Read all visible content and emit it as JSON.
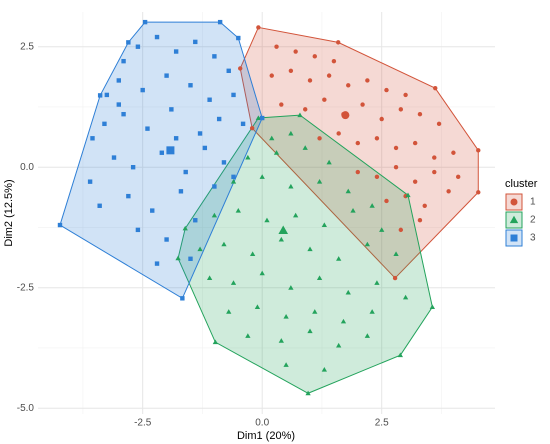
{
  "chart_data": {
    "type": "scatter",
    "xlabel": "Dim1 (20%)",
    "ylabel": "Dim2 (12.5%)",
    "legend_title": "cluster",
    "legend_position": "right",
    "grid": true,
    "xlim": [
      -4.69,
      4.87
    ],
    "ylim": [
      -5.12,
      3.22
    ],
    "xticks": [
      -2.5,
      {
        "value": 0,
        "label": "0.0"
      },
      2.5
    ],
    "yticks": [
      {
        "value": -5,
        "label": "-5.0"
      },
      -2.5,
      {
        "value": 0,
        "label": "0.0"
      },
      2.5
    ],
    "xminor": [
      -3.75,
      -1.25,
      1.25,
      3.75
    ],
    "yminor": [
      -3.75,
      -1.25,
      1.25
    ],
    "series": [
      {
        "name": "1",
        "color": "#d2543a",
        "marker": "circle",
        "center": [
          1.74,
          1.08
        ],
        "x": [
          -0.08,
          1.59,
          3.62,
          4.52,
          4.52,
          2.78,
          -0.21,
          -0.46,
          0.3,
          0.7,
          1.1,
          1.5,
          0.2,
          0.6,
          1.0,
          1.4,
          1.8,
          2.2,
          2.6,
          3.0,
          0.4,
          0.9,
          1.3,
          1.7,
          2.1,
          2.5,
          2.9,
          3.3,
          3.7,
          1.2,
          1.6,
          2.0,
          2.4,
          2.8,
          3.2,
          3.6,
          4.0,
          2.0,
          2.4,
          2.8,
          3.2,
          3.6,
          4.1,
          2.6,
          3.0,
          3.4,
          3.9,
          2.9,
          3.3
        ],
        "values": [
          2.9,
          2.59,
          1.64,
          0.35,
          -0.52,
          -2.3,
          0.81,
          2.05,
          2.5,
          2.4,
          2.3,
          2.2,
          1.9,
          2.0,
          1.8,
          1.9,
          1.7,
          1.8,
          1.6,
          1.5,
          1.3,
          1.2,
          1.4,
          1.1,
          1.3,
          1.0,
          1.2,
          1.1,
          0.9,
          0.6,
          0.7,
          0.5,
          0.6,
          0.4,
          0.5,
          0.2,
          0.3,
          -0.1,
          -0.2,
          0.0,
          -0.3,
          -0.1,
          -0.2,
          -0.7,
          -0.6,
          -0.8,
          -0.5,
          -1.3,
          -1.1
        ]
      },
      {
        "name": "2",
        "color": "#23a35c",
        "marker": "triangle",
        "center": [
          0.44,
          -1.31
        ],
        "x": [
          -0.08,
          0.79,
          3.05,
          3.56,
          2.89,
          0.96,
          -0.98,
          -1.76,
          -1.61,
          0.2,
          0.6,
          -0.3,
          0.3,
          0.9,
          1.4,
          -0.6,
          0.0,
          0.6,
          1.2,
          1.8,
          2.3,
          -1.0,
          -0.5,
          0.1,
          0.7,
          1.3,
          1.9,
          2.5,
          -1.3,
          -0.8,
          -0.2,
          0.4,
          1.0,
          1.6,
          2.2,
          2.8,
          -1.1,
          -0.6,
          0.0,
          0.6,
          1.2,
          1.8,
          2.4,
          3.0,
          -0.7,
          -0.1,
          0.5,
          1.1,
          1.7,
          2.3,
          -0.3,
          0.4,
          1.0,
          1.6,
          2.2,
          0.5,
          1.3
        ],
        "values": [
          1.02,
          1.08,
          -0.58,
          -2.9,
          -3.9,
          -4.69,
          -3.63,
          -1.89,
          -1.27,
          0.6,
          0.7,
          0.2,
          0.3,
          0.4,
          0.1,
          -0.3,
          -0.2,
          -0.4,
          -0.3,
          -0.5,
          -0.8,
          -1.0,
          -0.9,
          -1.1,
          -1.0,
          -1.2,
          -0.9,
          -1.3,
          -1.7,
          -1.6,
          -1.8,
          -1.5,
          -1.7,
          -1.9,
          -1.6,
          -1.8,
          -2.3,
          -2.4,
          -2.2,
          -2.5,
          -2.3,
          -2.6,
          -2.4,
          -2.7,
          -3.0,
          -2.9,
          -3.1,
          -3.0,
          -3.2,
          -3.0,
          -3.5,
          -3.6,
          -3.4,
          -3.7,
          -3.5,
          -4.1,
          -4.2
        ]
      },
      {
        "name": "3",
        "color": "#2e7fd6",
        "marker": "square",
        "center": [
          -1.92,
          0.35
        ],
        "x": [
          -2.45,
          -0.88,
          -0.5,
          0.0,
          -1.67,
          -4.23,
          -3.39,
          -2.8,
          -2.9,
          -2.6,
          -2.2,
          -1.8,
          -1.4,
          -1.0,
          -0.7,
          -3.25,
          -3.0,
          -2.5,
          -2.0,
          -1.5,
          -1.1,
          -0.6,
          -3.55,
          -3.3,
          -2.9,
          -2.4,
          -1.9,
          -1.3,
          -0.9,
          -0.4,
          -3.6,
          -3.1,
          -2.7,
          -2.1,
          -1.6,
          -1.2,
          -0.8,
          -3.4,
          -2.8,
          -2.3,
          -1.7,
          -1.0,
          -2.6,
          -2.0,
          -1.4,
          -2.2,
          -1.5,
          -0.6,
          -3.0,
          -1.8
        ],
        "values": [
          3.01,
          3.01,
          2.68,
          1.02,
          -2.72,
          -1.2,
          1.49,
          2.59,
          2.2,
          2.5,
          2.7,
          2.4,
          2.6,
          2.3,
          2.0,
          1.5,
          1.8,
          1.6,
          1.9,
          1.7,
          1.4,
          1.5,
          0.6,
          0.9,
          1.1,
          0.8,
          1.2,
          0.7,
          1.0,
          0.9,
          -0.3,
          0.2,
          0.0,
          0.3,
          -0.1,
          0.4,
          0.1,
          -0.8,
          -0.6,
          -0.9,
          -0.5,
          -0.4,
          -1.3,
          -1.5,
          -1.1,
          -2.0,
          -1.9,
          -0.2,
          1.3,
          0.6
        ]
      }
    ]
  }
}
